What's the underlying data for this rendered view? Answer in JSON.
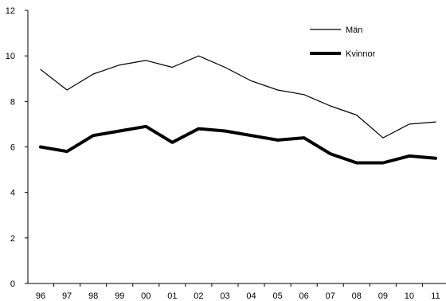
{
  "chart_data": {
    "type": "line",
    "title": "",
    "xlabel": "",
    "ylabel": "",
    "x": [
      "96",
      "97",
      "98",
      "99",
      "00",
      "01",
      "02",
      "03",
      "04",
      "05",
      "06",
      "07",
      "08",
      "09",
      "10",
      "11"
    ],
    "ylim": [
      0,
      12
    ],
    "yticks": [
      0,
      2,
      4,
      6,
      8,
      10,
      12
    ],
    "grid": false,
    "legend_position": "top-right",
    "series": [
      {
        "name": "Män",
        "color": "#000000",
        "values": [
          9.4,
          8.5,
          9.2,
          9.6,
          9.8,
          9.5,
          10.0,
          9.5,
          8.9,
          8.5,
          8.3,
          7.8,
          7.4,
          6.4,
          7.0,
          7.1
        ]
      },
      {
        "name": "Kvinnor",
        "color": "#000000",
        "values": [
          6.0,
          5.8,
          6.5,
          6.7,
          6.9,
          6.2,
          6.8,
          6.7,
          6.5,
          6.3,
          6.4,
          5.7,
          5.3,
          5.3,
          5.6,
          5.5
        ]
      }
    ]
  }
}
